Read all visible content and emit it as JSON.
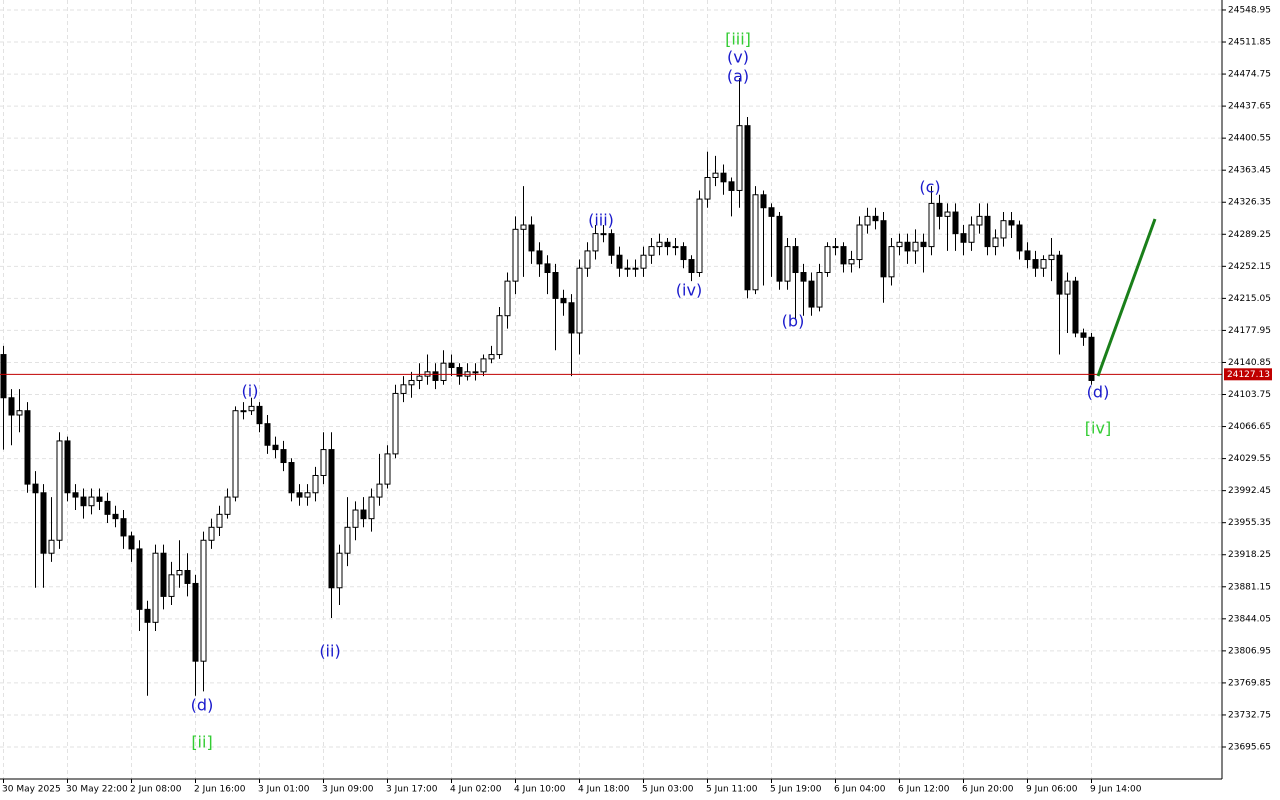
{
  "chart_data": {
    "type": "candlestick",
    "categories": [
      "30 May 2025",
      null,
      null,
      null,
      null,
      null,
      null,
      null,
      "30 May 22:00",
      null,
      null,
      null,
      null,
      null,
      null,
      null,
      "2 Jun 08:00",
      null,
      null,
      null,
      null,
      null,
      null,
      null,
      "2 Jun 16:00",
      null,
      null,
      null,
      null,
      null,
      null,
      null,
      "3 Jun 01:00",
      null,
      null,
      null,
      null,
      null,
      null,
      null,
      "3 Jun 09:00",
      null,
      null,
      null,
      null,
      null,
      null,
      null,
      "3 Jun 17:00",
      null,
      null,
      null,
      null,
      null,
      null,
      null,
      "4 Jun 02:00",
      null,
      null,
      null,
      null,
      null,
      null,
      null,
      "4 Jun 10:00",
      null,
      null,
      null,
      null,
      null,
      null,
      null,
      "4 Jun 18:00",
      null,
      null,
      null,
      null,
      null,
      null,
      null,
      "5 Jun 03:00",
      null,
      null,
      null,
      null,
      null,
      null,
      null,
      "5 Jun 11:00",
      null,
      null,
      null,
      null,
      null,
      null,
      null,
      "5 Jun 19:00",
      null,
      null,
      null,
      null,
      null,
      null,
      null,
      "6 Jun 04:00",
      null,
      null,
      null,
      null,
      null,
      null,
      null,
      "6 Jun 12:00",
      null,
      null,
      null,
      null,
      null,
      null,
      null,
      "6 Jun 20:00",
      null,
      null,
      null,
      null,
      null,
      null,
      null,
      "9 Jun 06:00",
      null,
      null,
      null,
      null,
      null,
      null,
      null,
      "9 Jun 14:00"
    ],
    "open": [
      24150,
      24100,
      24080,
      24085,
      24000,
      23990,
      23920,
      23935,
      24050,
      23990,
      23985,
      23975,
      23985,
      23980,
      23965,
      23960,
      23940,
      23925,
      23855,
      23840,
      23920,
      23870,
      23895,
      23900,
      23885,
      23795,
      23935,
      23950,
      23965,
      23985,
      24085,
      24085,
      24090,
      24070,
      24045,
      24040,
      24025,
      23990,
      23985,
      23990,
      24010,
      24040,
      23880,
      23920,
      23950,
      23970,
      23960,
      23985,
      24000,
      24035,
      24105,
      24115,
      24120,
      24125,
      24130,
      24120,
      24140,
      24135,
      24125,
      24130,
      24130,
      24145,
      24150,
      24195,
      24235,
      24295,
      24300,
      24270,
      24255,
      24245,
      24215,
      24210,
      24175,
      24250,
      24270,
      24290,
      24290,
      24265,
      24250,
      24250,
      24250,
      24265,
      24275,
      24280,
      24275,
      24275,
      24260,
      24245,
      24330,
      24355,
      24360,
      24350,
      24340,
      24415,
      24225,
      24335,
      24320,
      24310,
      24235,
      24275,
      24245,
      24235,
      24205,
      24245,
      24275,
      24275,
      24255,
      24260,
      24300,
      24310,
      24305,
      24240,
      24275,
      24280,
      24270,
      24280,
      24275,
      24325,
      24310,
      24315,
      24290,
      24280,
      24300,
      24310,
      24275,
      24285,
      24305,
      24300,
      24270,
      24260,
      24250,
      24260,
      24265,
      24220,
      24235,
      24175,
      24170
    ],
    "high": [
      24160,
      24110,
      24110,
      24095,
      24015,
      24000,
      23985,
      24060,
      24055,
      24000,
      23995,
      23995,
      23995,
      23990,
      23975,
      23970,
      23945,
      23935,
      23865,
      23930,
      23930,
      23910,
      23935,
      23920,
      23895,
      23945,
      23960,
      23975,
      23995,
      24090,
      24095,
      24100,
      24095,
      24080,
      24055,
      24050,
      24030,
      24000,
      24000,
      24020,
      24060,
      24060,
      23930,
      23985,
      23980,
      23985,
      23995,
      24035,
      24045,
      24115,
      24125,
      24130,
      24140,
      24150,
      24140,
      24155,
      24150,
      24140,
      24140,
      24140,
      24150,
      24160,
      24205,
      24245,
      24310,
      24345,
      24310,
      24280,
      24265,
      24255,
      24225,
      24220,
      24260,
      24280,
      24300,
      24300,
      24295,
      24275,
      24260,
      24260,
      24275,
      24285,
      24290,
      24285,
      24285,
      24280,
      24265,
      24340,
      24385,
      24380,
      24370,
      24355,
      24470,
      24425,
      24345,
      24340,
      24325,
      24315,
      24285,
      24285,
      24255,
      24245,
      24255,
      24280,
      24285,
      24280,
      24270,
      24310,
      24320,
      24320,
      24315,
      24285,
      24290,
      24290,
      24295,
      24290,
      24345,
      24335,
      24325,
      24325,
      24300,
      24310,
      24325,
      24325,
      24295,
      24315,
      24315,
      24305,
      24280,
      24270,
      24265,
      24285,
      24270,
      24245,
      24240,
      24180,
      24175
    ],
    "low": [
      24040,
      24045,
      24060,
      23990,
      23880,
      23880,
      23910,
      23925,
      23980,
      23970,
      23960,
      23965,
      23970,
      23955,
      23950,
      23925,
      23910,
      23830,
      23755,
      23830,
      23855,
      23860,
      23880,
      23870,
      23755,
      23760,
      23925,
      23940,
      23960,
      23980,
      24075,
      24080,
      24060,
      24035,
      24030,
      24015,
      23980,
      23975,
      23975,
      23980,
      24000,
      23845,
      23860,
      23905,
      23935,
      23950,
      23945,
      23975,
      23995,
      24030,
      24095,
      24100,
      24110,
      24115,
      24110,
      24115,
      24125,
      24115,
      24120,
      24120,
      24125,
      24140,
      24145,
      24180,
      24220,
      24240,
      24255,
      24240,
      24220,
      24155,
      24195,
      24125,
      24150,
      24240,
      24260,
      24280,
      24255,
      24240,
      24240,
      24240,
      24240,
      24255,
      24265,
      24265,
      24265,
      24250,
      24235,
      24240,
      24320,
      24345,
      24335,
      24310,
      24320,
      24215,
      24220,
      24230,
      24240,
      24225,
      24225,
      24190,
      24195,
      24195,
      24200,
      24240,
      24265,
      24245,
      24245,
      24250,
      24290,
      24295,
      24210,
      24230,
      24265,
      24255,
      24255,
      24245,
      24265,
      24295,
      24270,
      24270,
      24265,
      24270,
      24290,
      24265,
      24265,
      24275,
      24285,
      24260,
      24250,
      24240,
      24240,
      24235,
      24150,
      24175,
      24170,
      24160,
      24115
    ],
    "close": [
      24100,
      24080,
      24085,
      24000,
      23990,
      23920,
      23935,
      24050,
      23990,
      23985,
      23975,
      23985,
      23980,
      23965,
      23960,
      23940,
      23925,
      23855,
      23840,
      23920,
      23870,
      23895,
      23900,
      23885,
      23795,
      23935,
      23950,
      23965,
      23985,
      24085,
      24085,
      24090,
      24070,
      24045,
      24040,
      24025,
      23990,
      23985,
      23990,
      24010,
      24040,
      23880,
      23920,
      23950,
      23970,
      23960,
      23985,
      24000,
      24035,
      24105,
      24115,
      24120,
      24125,
      24130,
      24120,
      24140,
      24135,
      24125,
      24130,
      24130,
      24145,
      24150,
      24195,
      24235,
      24295,
      24300,
      24270,
      24255,
      24245,
      24215,
      24210,
      24175,
      24250,
      24270,
      24290,
      24290,
      24265,
      24250,
      24250,
      24250,
      24265,
      24275,
      24280,
      24275,
      24275,
      24260,
      24245,
      24330,
      24355,
      24360,
      24350,
      24340,
      24415,
      24225,
      24335,
      24320,
      24310,
      24235,
      24275,
      24245,
      24235,
      24205,
      24245,
      24275,
      24275,
      24255,
      24260,
      24300,
      24310,
      24305,
      24240,
      24275,
      24280,
      24270,
      24280,
      24275,
      24325,
      24310,
      24315,
      24290,
      24280,
      24300,
      24310,
      24275,
      24285,
      24305,
      24300,
      24270,
      24260,
      24250,
      24260,
      24265,
      24220,
      24235,
      24175,
      24170,
      24120
    ],
    "up_color": "#ffffff",
    "down_color": "#000000",
    "wick_color": "#000000",
    "ylim": [
      23658.6,
      24560.5
    ],
    "yticks": [
      24548.95,
      24511.85,
      24474.75,
      24437.65,
      24400.55,
      24363.45,
      24326.35,
      24289.25,
      24252.15,
      24215.05,
      24177.95,
      24140.85,
      24103.75,
      24066.65,
      24029.55,
      23992.45,
      23955.35,
      23918.25,
      23881.15,
      23844.05,
      23806.95,
      23769.85,
      23732.75,
      23695.65
    ],
    "grid": true,
    "current_price": 24127.13,
    "current_price_color": "#c00000",
    "annotations": [
      {
        "text": "[iii]",
        "color": "#33cc33"
      },
      {
        "text": "(v)",
        "color": "#1a1acc"
      },
      {
        "text": "(a)",
        "color": "#1a1acc"
      },
      {
        "text": "(i)",
        "color": "#1a1acc"
      },
      {
        "text": "(ii)",
        "color": "#1a1acc"
      },
      {
        "text": "(d)",
        "color": "#1a1acc"
      },
      {
        "text": "[ii]",
        "color": "#33cc33"
      },
      {
        "text": "(iii)",
        "color": "#1a1acc"
      },
      {
        "text": "(iv)",
        "color": "#1a1acc"
      },
      {
        "text": "(b)",
        "color": "#1a1acc"
      },
      {
        "text": "(c)",
        "color": "#1a1acc"
      },
      {
        "text": "(d)",
        "color": "#1a1acc"
      },
      {
        "text": "[iv]",
        "color": "#33cc33"
      }
    ]
  }
}
